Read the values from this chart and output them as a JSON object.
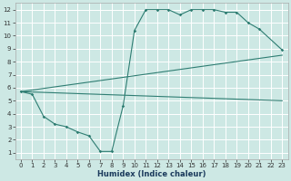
{
  "xlabel": "Humidex (Indice chaleur)",
  "xlim": [
    -0.5,
    23.5
  ],
  "ylim": [
    0.5,
    12.5
  ],
  "xticks": [
    0,
    1,
    2,
    3,
    4,
    5,
    6,
    7,
    8,
    9,
    10,
    11,
    12,
    13,
    14,
    15,
    16,
    17,
    18,
    19,
    20,
    21,
    22,
    23
  ],
  "yticks": [
    1,
    2,
    3,
    4,
    5,
    6,
    7,
    8,
    9,
    10,
    11,
    12
  ],
  "bg_color": "#cde8e4",
  "grid_color": "#ffffff",
  "line_color": "#2e7d72",
  "line1_x": [
    0,
    1,
    2,
    3,
    4,
    5,
    6,
    7,
    8,
    9,
    10,
    11,
    12,
    13,
    14,
    15,
    16,
    17,
    18,
    19,
    20,
    21,
    23
  ],
  "line1_y": [
    5.7,
    5.5,
    3.8,
    3.2,
    3.0,
    2.6,
    2.3,
    1.1,
    1.1,
    4.6,
    10.4,
    12.0,
    12.0,
    12.0,
    11.6,
    12.0,
    12.0,
    12.0,
    11.8,
    11.8,
    11.0,
    10.5,
    8.9
  ],
  "line2_x": [
    0,
    23
  ],
  "line2_y": [
    5.7,
    8.5
  ],
  "line3_x": [
    0,
    23
  ],
  "line3_y": [
    5.7,
    5.0
  ],
  "lw": 0.8,
  "ms": 1.8,
  "tick_fontsize": 5.0,
  "xlabel_fontsize": 6.0
}
